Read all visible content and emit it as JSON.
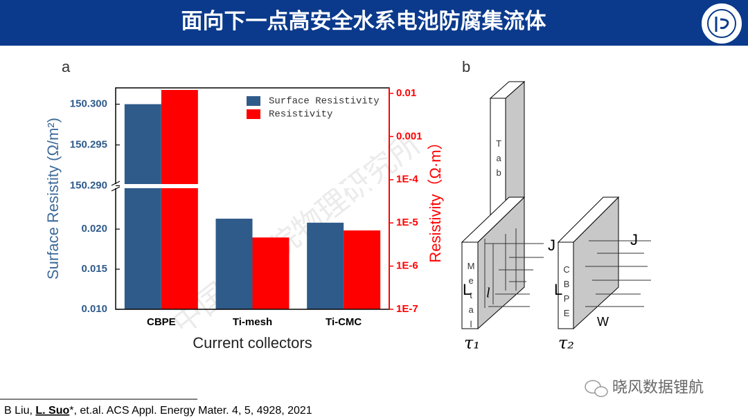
{
  "header": {
    "title": "面向下一点高安全水系电池防腐集流体"
  },
  "panels": {
    "a": "a",
    "b": "b"
  },
  "chart_data": {
    "type": "bar",
    "categories": [
      "CBPE",
      "Ti-mesh",
      "Ti-CMC"
    ],
    "xlabel": "Current collectors",
    "ylabel": "Surface Resistity (Ω/m²)",
    "y2label": "Resistivity（Ω·m）",
    "series": [
      {
        "name": "Surface Resistivity",
        "color": "#2f5b8a",
        "values": [
          150.3,
          0.0213,
          0.0208
        ]
      },
      {
        "name": "Resistivity",
        "color": "#ff0000",
        "axis": "y2",
        "values": [
          0.012,
          4.6e-06,
          6.7e-06
        ]
      }
    ],
    "ylim": [
      0.01,
      150.302
    ],
    "ybreak": [
      0.0251,
      150.2902
    ],
    "yticks": [
      {
        "value": 0.01,
        "label": "0.010"
      },
      {
        "value": 0.015,
        "label": "0.015"
      },
      {
        "value": 0.02,
        "label": "0.020"
      },
      {
        "value": 150.29,
        "label": "150.290"
      },
      {
        "value": 150.295,
        "label": "150.295"
      },
      {
        "value": 150.3,
        "label": "150.300"
      }
    ],
    "y2lim": [
      1e-07,
      0.0134
    ],
    "y2log": true,
    "y2ticks": [
      {
        "value": 1e-07,
        "label": "1E-7"
      },
      {
        "value": 1e-06,
        "label": "1E-6"
      },
      {
        "value": 1e-05,
        "label": "1E-5"
      },
      {
        "value": 0.0001,
        "label": "1E-4"
      },
      {
        "value": 0.001,
        "label": "0.001"
      },
      {
        "value": 0.01,
        "label": "0.01"
      }
    ],
    "legend": "upper right"
  },
  "diagram": {
    "tab": "Tab",
    "metal": "Metal",
    "cbpe": "CBPE",
    "j1": "J",
    "j2": "J",
    "l1": "L",
    "l2": "L",
    "l_small": "l",
    "w": "W",
    "tau1": "τ₁",
    "tau2": "τ₂"
  },
  "watermark": "中国科学院物理研究所",
  "footer": {
    "citation": [
      "B Liu, ",
      "L. Suo",
      "*, et.al. ACS Appl. Energy Mater. 4, 5, 4928, 2021"
    ],
    "brand": "晓风数据锂航"
  }
}
